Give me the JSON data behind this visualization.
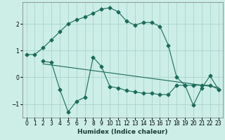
{
  "xlabel": "Humidex (Indice chaleur)",
  "background_color": "#cceee6",
  "grid_color": "#aad4cc",
  "line_color": "#1a6b5a",
  "xlim": [
    -0.5,
    23.5
  ],
  "ylim": [
    -1.5,
    2.8
  ],
  "yticks": [
    -1,
    0,
    1,
    2
  ],
  "xticks": [
    0,
    1,
    2,
    3,
    4,
    5,
    6,
    7,
    8,
    9,
    10,
    11,
    12,
    13,
    14,
    15,
    16,
    17,
    18,
    19,
    20,
    21,
    22,
    23
  ],
  "curve1_x": [
    0,
    1,
    2,
    3,
    4,
    5,
    6,
    7,
    8,
    9,
    10,
    11,
    12,
    13,
    14,
    15,
    16,
    17,
    18,
    19,
    20,
    21,
    22,
    23
  ],
  "curve1_y": [
    0.85,
    0.85,
    1.1,
    1.4,
    1.7,
    2.0,
    2.15,
    2.25,
    2.4,
    2.55,
    2.6,
    2.45,
    2.1,
    1.95,
    2.05,
    2.05,
    1.9,
    1.2,
    0.0,
    -0.3,
    -0.3,
    -0.3,
    -0.3,
    -0.45
  ],
  "curve2_x": [
    2,
    3,
    4,
    5,
    6,
    7,
    8,
    9,
    10,
    11,
    12,
    13,
    14,
    15,
    16,
    17,
    18,
    19,
    20,
    21,
    22,
    23
  ],
  "curve2_y": [
    0.6,
    0.55,
    -0.45,
    -1.3,
    -0.9,
    -0.75,
    0.75,
    0.4,
    -0.35,
    -0.4,
    -0.5,
    -0.55,
    -0.6,
    -0.6,
    -0.65,
    -0.65,
    -0.3,
    -0.3,
    -1.05,
    -0.4,
    0.05,
    -0.45
  ],
  "trend_x": [
    2,
    23
  ],
  "trend_y": [
    0.5,
    -0.38
  ]
}
